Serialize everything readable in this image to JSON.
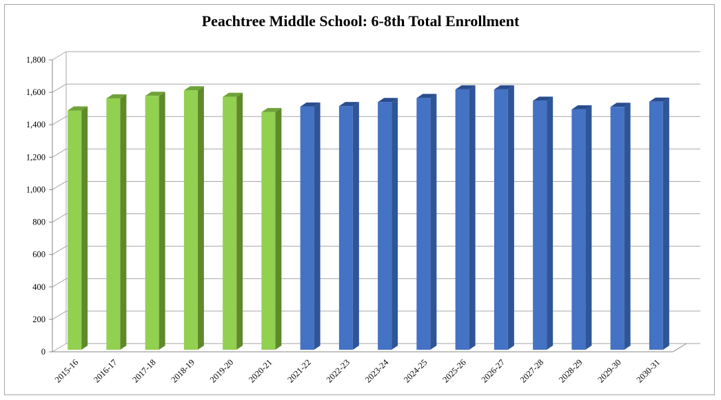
{
  "chart_data": {
    "type": "bar",
    "title": "Peachtree Middle School: 6-8th Total Enrollment",
    "xlabel": "",
    "ylabel": "",
    "ylim": [
      0,
      1800
    ],
    "y_ticks": [
      "0",
      "200",
      "400",
      "600",
      "800",
      "1,000",
      "1,200",
      "1,400",
      "1,600",
      "1,800"
    ],
    "categories": [
      "2015-16",
      "2016-17",
      "2017-18",
      "2018-19",
      "2019-20",
      "2020-21",
      "2021-22",
      "2022-23",
      "2023-24",
      "2024-25",
      "2025-26",
      "2026-27",
      "2027-28",
      "2028-29",
      "2029-30",
      "2030-31"
    ],
    "values": [
      1488,
      1562,
      1578,
      1612,
      1572,
      1478,
      1512,
      1515,
      1540,
      1565,
      1618,
      1618,
      1548,
      1495,
      1510,
      1542
    ],
    "bar_groups": [
      "actual",
      "actual",
      "actual",
      "actual",
      "actual",
      "actual",
      "projected",
      "projected",
      "projected",
      "projected",
      "projected",
      "projected",
      "projected",
      "projected",
      "projected",
      "projected"
    ],
    "colors": {
      "actual": {
        "front": "#92d050",
        "side": "#5f8a2c",
        "top": "#6fa33a"
      },
      "projected": {
        "front": "#4472c4",
        "side": "#2f5597",
        "top": "#2a4d8f"
      },
      "grid": "#a6a6a6",
      "axis": "#868686"
    },
    "grid": true,
    "legend": "none",
    "three_d": true
  }
}
